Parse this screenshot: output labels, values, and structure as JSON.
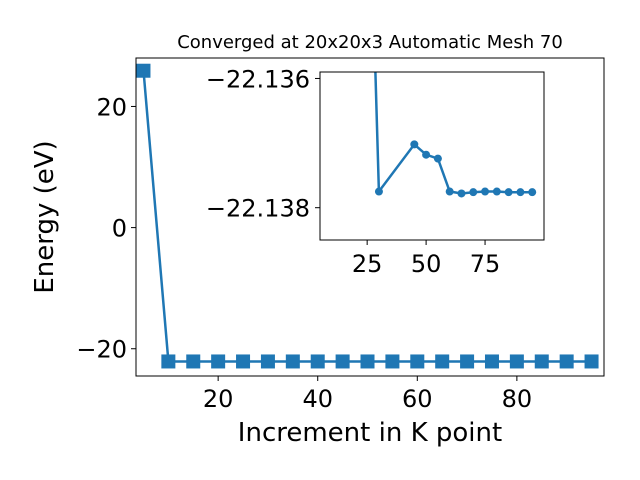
{
  "chart_data": [
    {
      "type": "line",
      "title": "Converged at 20x20x3 Automatic Mesh 70",
      "xlabel": "Increment in K point",
      "ylabel": "Energy (eV)",
      "xlim": [
        3.5,
        97.5
      ],
      "ylim": [
        -24.5,
        28
      ],
      "xticks": [
        20,
        40,
        60,
        80
      ],
      "yticks": [
        -20,
        0,
        20
      ],
      "grid": false,
      "series_color": "#1f77b4",
      "marker": "square",
      "x": [
        5,
        10,
        15,
        20,
        25,
        30,
        35,
        40,
        45,
        50,
        55,
        60,
        65,
        70,
        75,
        80,
        85,
        90,
        95
      ],
      "y": [
        25.9,
        -22.1,
        -22.1,
        -22.1,
        -22.1,
        -22.1,
        -22.1,
        -22.1,
        -22.1,
        -22.1,
        -22.1,
        -22.1,
        -22.1,
        -22.1,
        -22.1,
        -22.1,
        -22.1,
        -22.1,
        -22.1
      ]
    },
    {
      "type": "line",
      "role": "inset",
      "xlim": [
        5,
        100
      ],
      "ylim": [
        -22.1385,
        -22.1359
      ],
      "xticks": [
        25,
        50,
        75
      ],
      "xtick_labels": [
        "25",
        "50",
        "75"
      ],
      "yticks": [
        -22.138,
        -22.136
      ],
      "ytick_labels": [
        "−22.138",
        "−22.136"
      ],
      "grid": false,
      "series_color": "#1f77b4",
      "marker": "circle",
      "x": [
        30,
        45,
        50,
        55,
        60,
        65,
        70,
        75,
        80,
        85,
        90,
        95
      ],
      "y": [
        -22.13775,
        -22.13702,
        -22.13718,
        -22.13724,
        -22.13775,
        -22.13778,
        -22.13776,
        -22.13775,
        -22.13775,
        -22.13776,
        -22.13776,
        -22.13776
      ],
      "entry_from_above": {
        "x": 28.5
      }
    }
  ]
}
